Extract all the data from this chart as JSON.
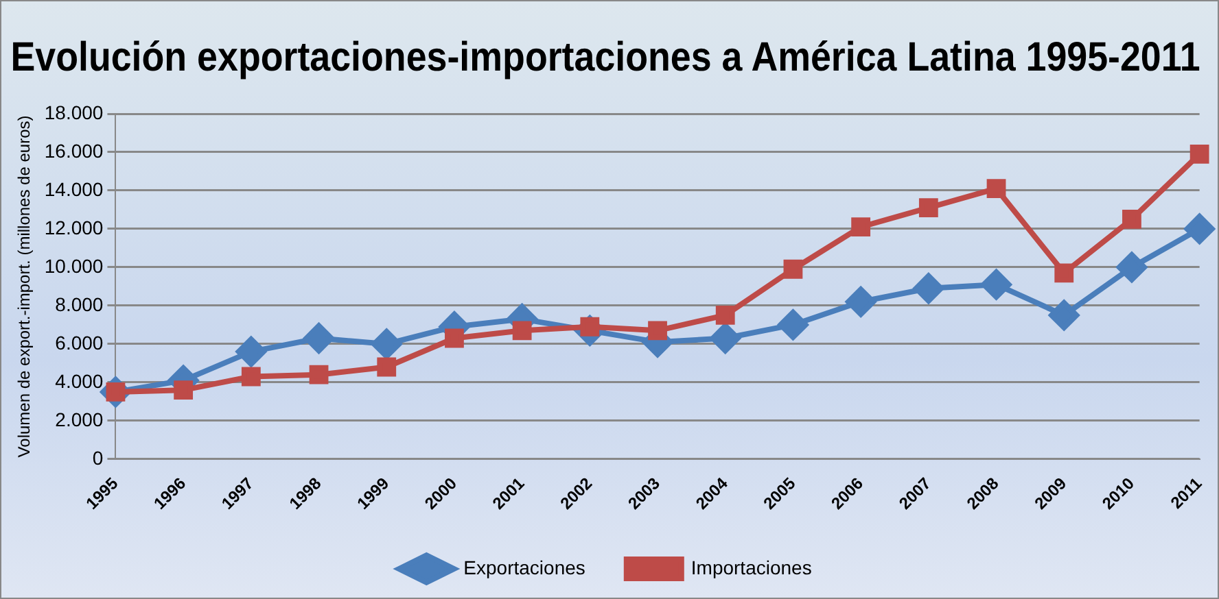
{
  "chart_data": {
    "type": "line",
    "title": "Evolución exportaciones-importaciones a América Latina 1995-2011",
    "ylabel": "Volumen de export.-import. (millones de euros)",
    "categories": [
      "1995",
      "1996",
      "1997",
      "1998",
      "1999",
      "2000",
      "2001",
      "2002",
      "2003",
      "2004",
      "2005",
      "2006",
      "2007",
      "2008",
      "2009",
      "2010",
      "2011"
    ],
    "series": [
      {
        "name": "Exportaciones",
        "color": "#4a7ebb",
        "marker": "diamond",
        "values": [
          3500,
          4100,
          5600,
          6300,
          6000,
          6900,
          7300,
          6700,
          6100,
          6300,
          7000,
          8200,
          8900,
          9100,
          7500,
          10000,
          12000
        ]
      },
      {
        "name": "Importaciones",
        "color": "#be4b48",
        "marker": "square",
        "values": [
          3500,
          3600,
          4300,
          4400,
          4800,
          6300,
          6700,
          6900,
          6700,
          7500,
          9900,
          12100,
          13100,
          14100,
          9700,
          12500,
          15900
        ]
      }
    ],
    "ylim": [
      0,
      18000
    ],
    "yticks": [
      0,
      {
        "value": 2000,
        "label": "2.000"
      },
      {
        "value": 4000,
        "label": "4.000"
      },
      {
        "value": 6000,
        "label": "6.000"
      },
      {
        "value": 8000,
        "label": "8.000"
      },
      {
        "value": 10000,
        "label": "10.000"
      },
      {
        "value": 12000,
        "label": "12.000"
      },
      {
        "value": 14000,
        "label": "14.000"
      },
      {
        "value": 16000,
        "label": "16.000"
      },
      {
        "value": 18000,
        "label": "18.000"
      }
    ],
    "grid": "y",
    "legend": "bottom"
  }
}
